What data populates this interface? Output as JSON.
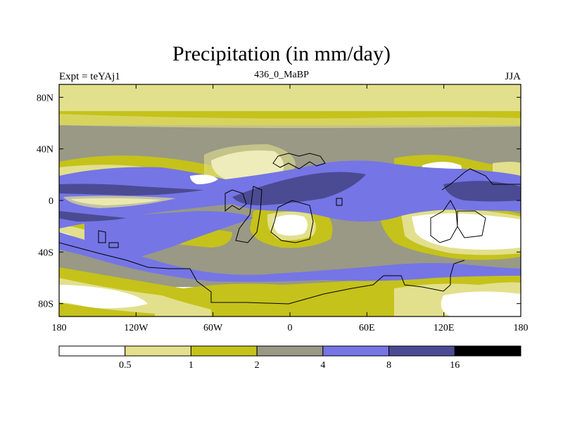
{
  "title": "Precipitation (in mm/day)",
  "left_string": "Expt = teYAj1",
  "center_string": "436_0_MaBP",
  "right_string": "JJA",
  "colors": {
    "white": "#ffffff",
    "pale_yellow": "#e2e08c",
    "olive": "#c5c21b",
    "gray": "#999986",
    "light_blue": "#7575e6",
    "dark_blue": "#4b4b94",
    "black": "#000000"
  },
  "chart_data": {
    "type": "heatmap",
    "projection": "cylindrical-equidistant",
    "x_ticks": [
      {
        "value": -180,
        "label": "180"
      },
      {
        "value": -120,
        "label": "120W"
      },
      {
        "value": -60,
        "label": "60W"
      },
      {
        "value": 0,
        "label": "0"
      },
      {
        "value": 60,
        "label": "60E"
      },
      {
        "value": 120,
        "label": "120E"
      },
      {
        "value": 180,
        "label": "180"
      }
    ],
    "y_ticks": [
      {
        "value": 80,
        "label": "80N"
      },
      {
        "value": 40,
        "label": "40N"
      },
      {
        "value": 0,
        "label": "0"
      },
      {
        "value": -40,
        "label": "40S"
      },
      {
        "value": -80,
        "label": "80S"
      }
    ],
    "xlim": [
      -180,
      180
    ],
    "ylim": [
      -90,
      90
    ],
    "colorbar": {
      "levels": [
        "0.5",
        "1",
        "2",
        "4",
        "8",
        "16"
      ],
      "colors": [
        "#ffffff",
        "#e2e08c",
        "#c5c21b",
        "#999986",
        "#7575e6",
        "#4b4b94",
        "#000000"
      ]
    }
  }
}
